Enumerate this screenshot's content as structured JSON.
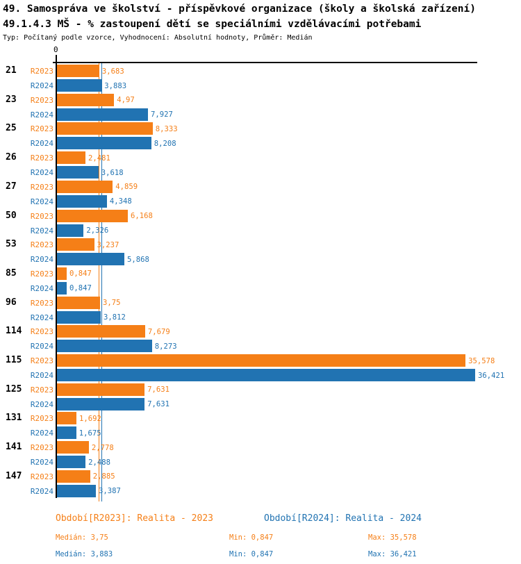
{
  "header": {
    "title": "49. Samospráva ve školství - příspěvkové organizace (školy a školská zařízení)",
    "subtitle": "49.1.4.3 MŠ - % zastoupení dětí se speciálními vzdělávacími potřebami",
    "meta": "Typ: Počítaný podle vzorce, Vyhodnocení: Absolutní hodnoty, Průměr: Medián"
  },
  "chart_data": {
    "type": "bar",
    "orientation": "horizontal",
    "title": "49.1.4.3 MŠ - % zastoupení dětí se speciálními vzdělávacími potřebami",
    "categories": [
      "21",
      "23",
      "25",
      "26",
      "27",
      "50",
      "53",
      "85",
      "96",
      "114",
      "115",
      "125",
      "131",
      "141",
      "147"
    ],
    "xlim": [
      0,
      36.72
    ],
    "grid": false,
    "legend_position": "bottom",
    "axis": {
      "zero_label": "0"
    },
    "series": [
      {
        "name": "R2023",
        "color": "#f57f17",
        "values": [
          3.683,
          4.97,
          8.333,
          2.481,
          4.859,
          6.168,
          3.237,
          0.847,
          3.75,
          7.679,
          35.578,
          7.631,
          1.692,
          2.778,
          2.885
        ],
        "labels": [
          "3,683",
          "4,97",
          "8,333",
          "2,481",
          "4,859",
          "6,168",
          "3,237",
          "0,847",
          "3,75",
          "7,679",
          "35,578",
          "7,631",
          "1,692",
          "2,778",
          "2,885"
        ],
        "median": 3.75
      },
      {
        "name": "R2024",
        "color": "#2173b2",
        "values": [
          3.883,
          7.927,
          8.208,
          3.618,
          4.348,
          2.326,
          5.868,
          0.847,
          3.812,
          8.273,
          36.421,
          7.631,
          1.675,
          2.488,
          3.387
        ],
        "labels": [
          "3,883",
          "7,927",
          "8,208",
          "3,618",
          "4,348",
          "2,326",
          "5,868",
          "0,847",
          "3,812",
          "8,273",
          "36,421",
          "7,631",
          "1,675",
          "2,488",
          "3,387"
        ],
        "median": 3.883
      }
    ]
  },
  "legend": {
    "r2023": "Období[R2023]: Realita - 2023",
    "r2024": "Období[R2024]: Realita - 2024"
  },
  "stats": {
    "r2023": {
      "median": "Medián: 3,75",
      "min": "Min: 0,847",
      "max": "Max: 35,578"
    },
    "r2024": {
      "median": "Medián: 3,883",
      "min": "Min: 0,847",
      "max": "Max: 36,421"
    }
  }
}
